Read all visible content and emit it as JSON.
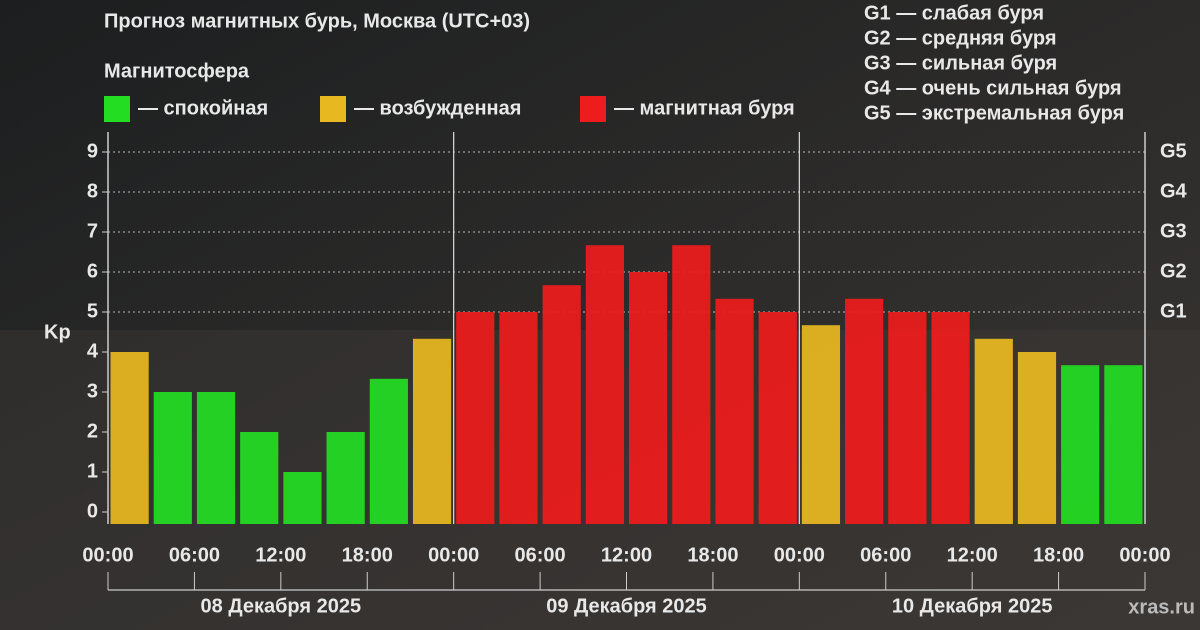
{
  "chart_data": {
    "type": "bar",
    "title": "Прогноз магнитных бурь, Москва (UTC+03)",
    "legend_title": "Магнитосфера",
    "legend": [
      {
        "label": "— спокойная",
        "color": "#22dd22"
      },
      {
        "label": "— возбужденная",
        "color": "#e8b820"
      },
      {
        "label": "— магнитная буря",
        "color": "#ee1c1c"
      }
    ],
    "scale_notes": [
      "G1 — слабая буря",
      "G2 — средняя буря",
      "G3 — сильная буря",
      "G4 — очень сильная буря",
      "G5 — экстремальная буря"
    ],
    "y_label": "Kp",
    "x": [
      0,
      3,
      6,
      9,
      12,
      15,
      18,
      21,
      24,
      27,
      30,
      33,
      36,
      39,
      42,
      45,
      48,
      51,
      54,
      57,
      60,
      63,
      66,
      69
    ],
    "values": [
      4.0,
      3.0,
      3.0,
      2.0,
      1.0,
      2.0,
      3.33,
      4.33,
      5.0,
      5.0,
      5.67,
      6.67,
      6.0,
      6.67,
      5.33,
      5.0,
      4.67,
      5.33,
      5.0,
      5.0,
      4.33,
      4.0,
      3.67,
      3.67
    ],
    "colors": [
      "#e8b820",
      "#22dd22",
      "#22dd22",
      "#22dd22",
      "#22dd22",
      "#22dd22",
      "#22dd22",
      "#e8b820",
      "#ee1c1c",
      "#ee1c1c",
      "#ee1c1c",
      "#ee1c1c",
      "#ee1c1c",
      "#ee1c1c",
      "#ee1c1c",
      "#ee1c1c",
      "#e8b820",
      "#ee1c1c",
      "#ee1c1c",
      "#ee1c1c",
      "#e8b820",
      "#e8b820",
      "#22dd22",
      "#22dd22"
    ],
    "xlim": [
      0,
      72
    ],
    "xticks": [
      {
        "value": 0,
        "label": "00:00"
      },
      {
        "value": 6,
        "label": "06:00"
      },
      {
        "value": 12,
        "label": "12:00"
      },
      {
        "value": 18,
        "label": "18:00"
      },
      {
        "value": 24,
        "label": "00:00"
      },
      {
        "value": 30,
        "label": "06:00"
      },
      {
        "value": 36,
        "label": "12:00"
      },
      {
        "value": 42,
        "label": "18:00"
      },
      {
        "value": 48,
        "label": "00:00"
      },
      {
        "value": 54,
        "label": "06:00"
      },
      {
        "value": 60,
        "label": "12:00"
      },
      {
        "value": 66,
        "label": "18:00"
      },
      {
        "value": 72,
        "label": "00:00"
      }
    ],
    "days": [
      "08 Декабря 2025",
      "09 Декабря 2025",
      "10 Декабря 2025"
    ],
    "ylim": [
      -0.3,
      9.5
    ],
    "yticks": [
      0,
      1,
      2,
      3,
      4,
      5,
      6,
      7,
      8,
      9
    ],
    "y2lim": [
      -0.3,
      9.5
    ],
    "y2ticks": [
      {
        "value": 5,
        "label": "G1"
      },
      {
        "value": 6,
        "label": "G2"
      },
      {
        "value": 7,
        "label": "G3"
      },
      {
        "value": 8,
        "label": "G4"
      },
      {
        "value": 9,
        "label": "G5"
      }
    ],
    "source": "xras.ru"
  }
}
